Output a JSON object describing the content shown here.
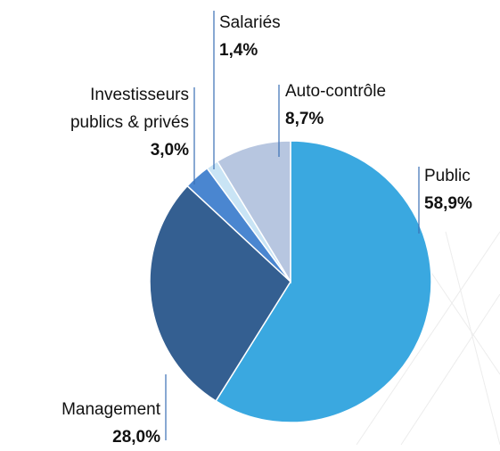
{
  "chart_data": {
    "type": "pie",
    "categories": [
      "Public",
      "Management",
      "Investisseurs publics & privés",
      "Salariés",
      "Auto-contrôle"
    ],
    "values": [
      58.9,
      28.0,
      3.0,
      1.4,
      8.7
    ],
    "value_labels": [
      "58,9%",
      "28,0%",
      "3,0%",
      "1,4%",
      "8,7%"
    ],
    "colors": [
      "#3aa8e0",
      "#345f91",
      "#4a86d0",
      "#c9e4f5",
      "#b7c6e0"
    ]
  }
}
